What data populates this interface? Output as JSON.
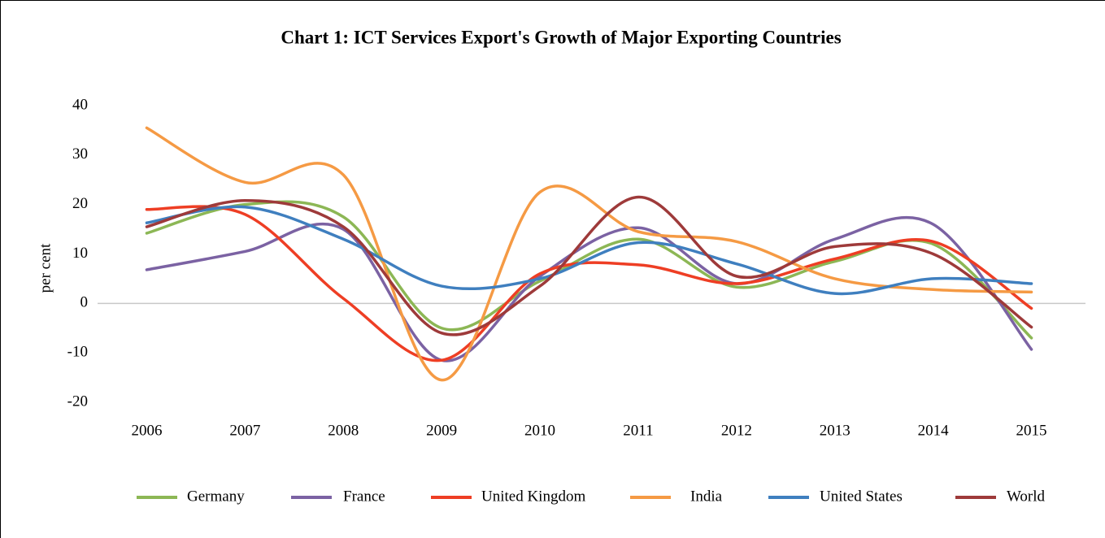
{
  "chart_data": {
    "type": "line",
    "title": "Chart 1: ICT Services Export's Growth of Major Exporting Countries",
    "y_label": "per cent",
    "categories": [
      "2006",
      "2007",
      "2008",
      "2009",
      "2010",
      "2011",
      "2012",
      "2013",
      "2014",
      "2015"
    ],
    "ylim": [
      -20,
      40
    ],
    "yticks": [
      -20,
      -10,
      0,
      10,
      20,
      30,
      40
    ],
    "grid": false,
    "smooth": true,
    "legend": "bottom",
    "series": [
      {
        "name": "Germany",
        "color": "#8cb755",
        "values": [
          14.2,
          20,
          17.5,
          -5,
          4.5,
          13,
          3.3,
          8.5,
          12,
          -7
        ]
      },
      {
        "name": "France",
        "color": "#7b62a3",
        "values": [
          6.8,
          10.5,
          15,
          -11.5,
          5.5,
          15.3,
          4,
          13,
          16,
          -9.3
        ]
      },
      {
        "name": "United Kingdom",
        "color": "#ee3e24",
        "values": [
          19,
          18,
          1,
          -11.5,
          6,
          7.8,
          4,
          9,
          12.5,
          -1
        ]
      },
      {
        "name": "India",
        "color": "#f59a44",
        "values": [
          35.5,
          24.5,
          26,
          -15.5,
          22.5,
          14.5,
          12.5,
          5,
          2.8,
          2.3
        ]
      },
      {
        "name": "United States",
        "color": "#3f7fbf",
        "values": [
          16.3,
          19.5,
          13,
          3.5,
          5,
          12.3,
          8,
          2,
          5,
          4
        ]
      },
      {
        "name": "World",
        "color": "#9e3a3a",
        "values": [
          15.5,
          20.8,
          15.5,
          -6,
          3.5,
          21.5,
          5.5,
          11.5,
          10,
          -4.8
        ]
      }
    ]
  }
}
